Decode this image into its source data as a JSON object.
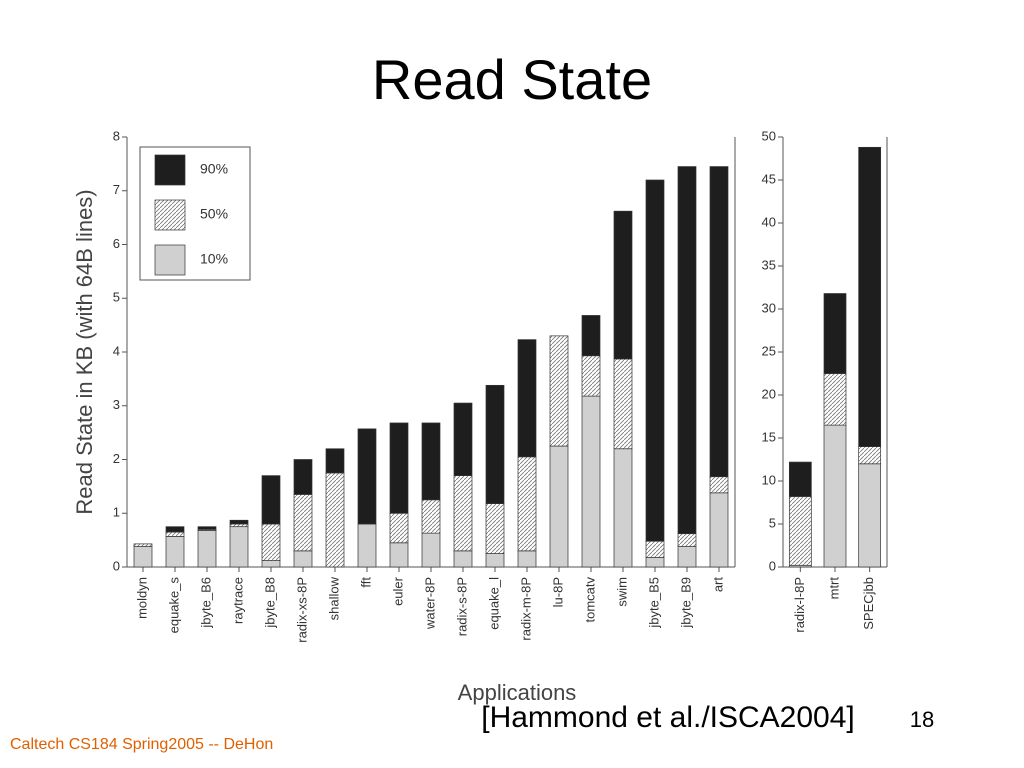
{
  "slide": {
    "title": "Read State",
    "y_label": "Read State in KB (with 64B lines)",
    "x_label": "Applications",
    "citation": "[Hammond et al./ISCA2004]",
    "page": "18",
    "footer": "Caltech CS184 Spring2005 -- DeHon"
  },
  "chart_data": [
    {
      "type": "stacked_bar",
      "legend": "upper left",
      "categories": [
        "moldyn",
        "equake_s",
        "jbyte_B6",
        "raytrace",
        "jbyte_B8",
        "radix-xs-8P",
        "shallow",
        "fft",
        "euler",
        "water-8P",
        "radix-s-8P",
        "equake_l",
        "radix-m-8P",
        "lu-8P",
        "tomcatv",
        "swim",
        "jbyte_B5",
        "jbyte_B9",
        "art"
      ],
      "series": [
        {
          "name": "10%",
          "color": "#d0d0d0",
          "values": [
            0.38,
            0.57,
            0.68,
            0.75,
            0.12,
            0.3,
            0,
            0.8,
            0.45,
            0.63,
            0.3,
            0.25,
            0.3,
            2.25,
            3.18,
            2.2,
            0.18,
            0.38,
            1.38
          ]
        },
        {
          "name": "50%",
          "color": "#ffffff",
          "pattern": "hatch",
          "values": [
            0.05,
            0.08,
            0.02,
            0.05,
            0.68,
            1.05,
            1.75,
            0,
            0.55,
            0.62,
            1.4,
            0.93,
            1.75,
            2.05,
            0.75,
            1.67,
            0.3,
            0.24,
            0.3
          ]
        },
        {
          "name": "90%",
          "color": "#1e1e1e",
          "values": [
            0,
            0.1,
            0.05,
            0.07,
            0.9,
            0.65,
            0.45,
            1.77,
            1.68,
            1.43,
            1.35,
            2.2,
            2.18,
            0,
            0.75,
            2.75,
            6.72,
            6.83,
            5.77
          ]
        }
      ],
      "ylim": [
        0,
        8
      ],
      "yticks": [
        0,
        1,
        2,
        3,
        4,
        5,
        6,
        7,
        8
      ]
    },
    {
      "type": "stacked_bar",
      "categories": [
        "radix-l-8P",
        "mtrt",
        "SPECjbb"
      ],
      "series": [
        {
          "color": "#d0d0d0",
          "values": [
            0.2,
            16.5,
            12.0
          ]
        },
        {
          "color": "#ffffff",
          "pattern": "hatch",
          "values": [
            8.0,
            6.0,
            2.0
          ]
        },
        {
          "color": "#1e1e1e",
          "values": [
            4.0,
            9.3,
            34.8
          ]
        }
      ],
      "ylim": [
        0,
        50
      ],
      "yticks": [
        0,
        5,
        10,
        15,
        20,
        25,
        30,
        35,
        40,
        45,
        50
      ]
    }
  ]
}
